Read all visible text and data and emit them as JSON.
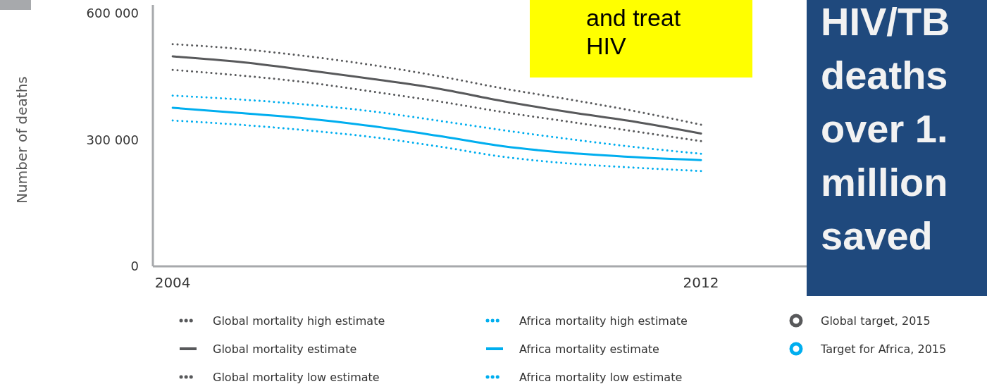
{
  "chart_data": {
    "type": "line",
    "ylabel": "Number of deaths",
    "x": [
      2004,
      2005,
      2006,
      2007,
      2008,
      2009,
      2010,
      2011,
      2012
    ],
    "xlim": [
      2003.7,
      2013.6
    ],
    "xticks": [
      2004,
      2012
    ],
    "ylim": [
      0,
      620000
    ],
    "yticks": [
      {
        "value": 0,
        "label": "0"
      },
      {
        "value": 300000,
        "label": "300 000"
      },
      {
        "value": 600000,
        "label": "600 000"
      }
    ],
    "grid": false,
    "legend": "bottom",
    "series": [
      {
        "name": "Global mortality high estimate",
        "color": "#58595b",
        "line_style": "dotted",
        "values": [
          527000,
          516000,
          499000,
          478000,
          452000,
          422000,
          396000,
          368000,
          336000
        ]
      },
      {
        "name": "Global mortality estimate",
        "color": "#58595b",
        "line_style": "solid",
        "values": [
          498000,
          485000,
          466000,
          445000,
          422000,
          392000,
          366000,
          343000,
          315000
        ]
      },
      {
        "name": "Global mortality low estimate",
        "color": "#58595b",
        "line_style": "dotted",
        "values": [
          466000,
          453000,
          437000,
          415000,
          392000,
          366000,
          343000,
          320000,
          297000
        ]
      },
      {
        "name": "Africa mortality high estimate",
        "color": "#00aeef",
        "line_style": "dotted",
        "values": [
          405000,
          396000,
          384000,
          368000,
          346000,
          323000,
          302000,
          283000,
          267000
        ]
      },
      {
        "name": "Africa mortality estimate",
        "color": "#00aeef",
        "line_style": "solid",
        "values": [
          376000,
          364000,
          351000,
          333000,
          310000,
          285000,
          269000,
          259000,
          252000
        ]
      },
      {
        "name": "Africa mortality low estimate",
        "color": "#00aeef",
        "line_style": "dotted",
        "values": [
          346000,
          336000,
          323000,
          307000,
          285000,
          260000,
          244000,
          234000,
          226000
        ]
      },
      {
        "name": "Global target, 2015",
        "type": "scatter",
        "marker": "circle",
        "color": "#58595b",
        "values": [
          null,
          null,
          null,
          null,
          null,
          null,
          null,
          null,
          null
        ]
      },
      {
        "name": "Target for Africa, 2015",
        "type": "scatter",
        "marker": "circle",
        "color": "#00aeef",
        "values": [
          null,
          null,
          null,
          null,
          null,
          null,
          null,
          null,
          null
        ]
      }
    ],
    "annotations": [
      "and treat\nHIV",
      "HIV/TB\ndeaths\nover 1.\nmillion\nsaved"
    ]
  }
}
